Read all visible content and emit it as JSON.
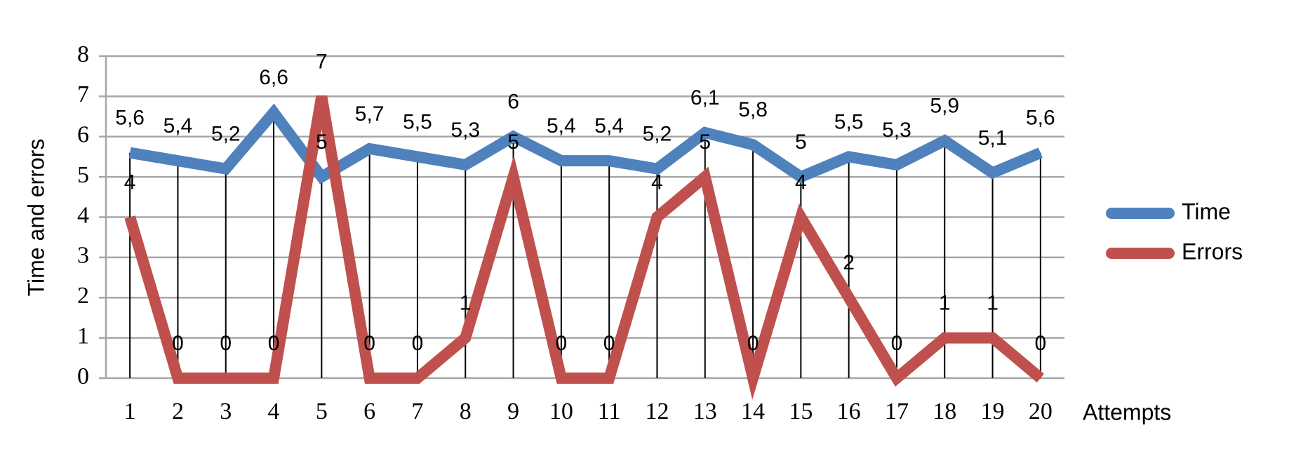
{
  "chart_data": {
    "type": "line",
    "categories": [
      "1",
      "2",
      "3",
      "4",
      "5",
      "6",
      "7",
      "8",
      "9",
      "10",
      "11",
      "12",
      "13",
      "14",
      "15",
      "16",
      "17",
      "18",
      "19",
      "20"
    ],
    "series": [
      {
        "name": "Time",
        "color": "#4f81bd",
        "values": [
          5.6,
          5.4,
          5.2,
          6.6,
          5,
          5.7,
          5.5,
          5.3,
          6,
          5.4,
          5.4,
          5.2,
          6.1,
          5.8,
          5,
          5.5,
          5.3,
          5.9,
          5.1,
          5.6
        ],
        "value_labels": [
          "5,6",
          "5,4",
          "5,2",
          "6,6",
          "5",
          "5,7",
          "5,5",
          "5,3",
          "6",
          "5,4",
          "5,4",
          "5,2",
          "6,1",
          "5,8",
          "5",
          "5,5",
          "5,3",
          "5,9",
          "5,1",
          "5,6"
        ]
      },
      {
        "name": "Errors",
        "color": "#c0504d",
        "values": [
          4,
          0,
          0,
          0,
          7,
          0,
          0,
          1,
          5,
          0,
          0,
          4,
          5,
          0,
          4,
          2,
          0,
          1,
          1,
          0
        ]
      }
    ],
    "y_label": "Time and errors",
    "x_label": "Attempts",
    "ylim": [
      0,
      8
    ],
    "yticks": [
      0,
      1,
      2,
      3,
      4,
      5,
      6,
      7,
      8
    ],
    "grid": true,
    "legend": "right"
  }
}
